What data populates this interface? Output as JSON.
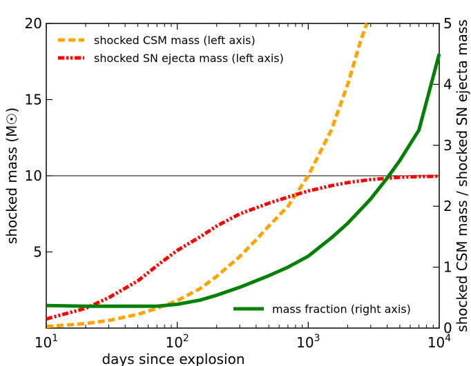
{
  "chart_data": {
    "type": "line",
    "xlabel": "days since explosion",
    "ylabel_left": "shocked mass (M☉)",
    "ylabel_right": "shocked CSM mass / shocked SN ejecta mass",
    "x_scale": "log",
    "xlim": [
      10,
      10000
    ],
    "ylim_left": [
      0,
      20
    ],
    "ylim_right": [
      0,
      5
    ],
    "x_ticks": [
      {
        "value": 10,
        "base": "10",
        "exp": "1"
      },
      {
        "value": 100,
        "base": "10",
        "exp": "2"
      },
      {
        "value": 1000,
        "base": "10",
        "exp": "3"
      },
      {
        "value": 10000,
        "base": "10",
        "exp": "4"
      }
    ],
    "y_ticks_left": [
      "5",
      "10",
      "15",
      "20"
    ],
    "y_ticks_right": [
      "0",
      "1",
      "2",
      "3",
      "4",
      "5"
    ],
    "reference_line": {
      "axis": "left",
      "y": 10,
      "color": "#000000"
    },
    "legend_top": {
      "placement": "top-left",
      "entries": [
        "shocked CSM mass (left axis)",
        "shocked SN ejecta mass (left axis)"
      ]
    },
    "legend_bottom": {
      "placement": "bottom-right",
      "entries": [
        "mass fraction (right axis)"
      ]
    },
    "series": [
      {
        "name": "shocked CSM mass (left axis)",
        "axis": "left",
        "color": "#FFA500",
        "style": "dashed",
        "x": [
          10,
          20,
          30,
          50,
          70,
          100,
          150,
          200,
          300,
          400,
          500,
          700,
          1000,
          1500,
          2000,
          2500,
          2800
        ],
        "y": [
          0.1,
          0.3,
          0.5,
          0.9,
          1.3,
          1.8,
          2.6,
          3.4,
          4.7,
          5.8,
          6.7,
          8.0,
          10.0,
          13.0,
          16.0,
          18.8,
          20.0
        ]
      },
      {
        "name": "shocked SN ejecta mass (left axis)",
        "axis": "left",
        "color": "#FF0000",
        "style": "dashdotdot",
        "x": [
          10,
          20,
          30,
          50,
          70,
          100,
          150,
          200,
          300,
          500,
          700,
          1000,
          1500,
          2000,
          3000,
          5000,
          7000,
          10000
        ],
        "y": [
          0.6,
          1.3,
          2.0,
          3.1,
          4.1,
          5.1,
          6.0,
          6.7,
          7.5,
          8.2,
          8.6,
          9.0,
          9.35,
          9.55,
          9.75,
          9.9,
          9.95,
          9.97
        ]
      },
      {
        "name": "mass fraction (right axis)",
        "axis": "right",
        "color": "#008000",
        "style": "solid",
        "x": [
          10,
          20,
          30,
          50,
          70,
          100,
          150,
          200,
          300,
          500,
          700,
          1000,
          1500,
          2000,
          3000,
          4000,
          5000,
          7000,
          10000
        ],
        "y": [
          0.37,
          0.36,
          0.36,
          0.36,
          0.36,
          0.39,
          0.46,
          0.54,
          0.67,
          0.86,
          1.0,
          1.18,
          1.48,
          1.72,
          2.12,
          2.46,
          2.75,
          3.25,
          4.5
        ]
      }
    ]
  }
}
